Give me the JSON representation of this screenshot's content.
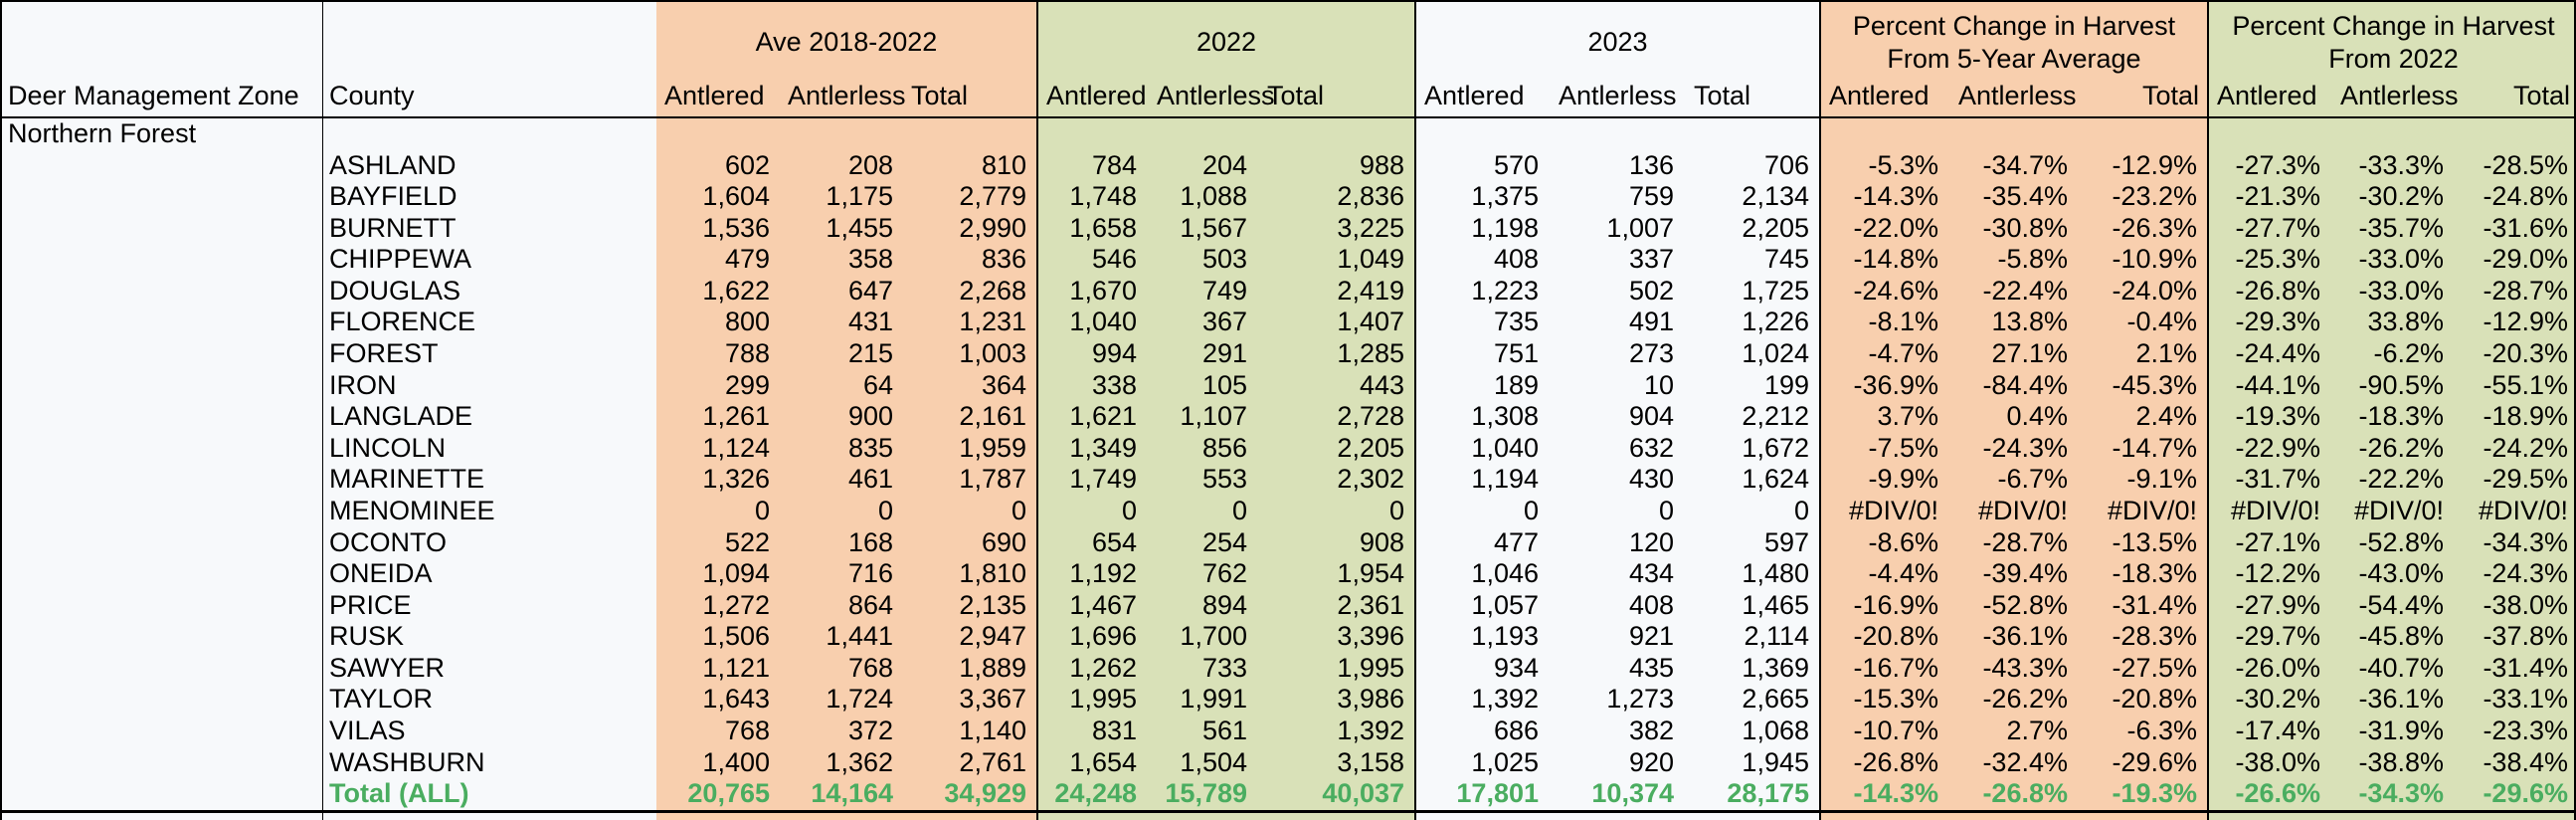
{
  "colors": {
    "peach_fill": "#f8cfae",
    "green_fill": "#d9e1b8",
    "base_fill": "#f7f9fb",
    "total_text_green": "#4aad60",
    "border_black": "#000000"
  },
  "header": {
    "zone_label": "Deer Management Zone",
    "county_label": "County",
    "groups": [
      {
        "title_lines": [
          "Ave 2018-2022"
        ],
        "columns": [
          "Antlered",
          "Antlerless",
          "Total"
        ],
        "fill": "peach"
      },
      {
        "title_lines": [
          "2022"
        ],
        "columns": [
          "Antlered",
          "Antlerless",
          "Total"
        ],
        "fill": "green"
      },
      {
        "title_lines": [
          "2023"
        ],
        "columns": [
          "Antlered",
          "Antlerless",
          "Total"
        ],
        "fill": "plain"
      },
      {
        "title_lines": [
          "Percent Change in Harvest",
          "From 5-Year Average"
        ],
        "columns": [
          "Antlered",
          "Antlerless",
          "Total"
        ],
        "fill": "peach"
      },
      {
        "title_lines": [
          "Percent Change in Harvest",
          "From 2022"
        ],
        "columns": [
          "Antlered",
          "Antlerless",
          "Total"
        ],
        "fill": "green"
      }
    ]
  },
  "zone_row_label": "Northern Forest",
  "rows": [
    {
      "county": "ASHLAND",
      "cells": [
        "602",
        "208",
        "810",
        "784",
        "204",
        "988",
        "570",
        "136",
        "706",
        "-5.3%",
        "-34.7%",
        "-12.9%",
        "-27.3%",
        "-33.3%",
        "-28.5%"
      ]
    },
    {
      "county": "BAYFIELD",
      "cells": [
        "1,604",
        "1,175",
        "2,779",
        "1,748",
        "1,088",
        "2,836",
        "1,375",
        "759",
        "2,134",
        "-14.3%",
        "-35.4%",
        "-23.2%",
        "-21.3%",
        "-30.2%",
        "-24.8%"
      ]
    },
    {
      "county": "BURNETT",
      "cells": [
        "1,536",
        "1,455",
        "2,990",
        "1,658",
        "1,567",
        "3,225",
        "1,198",
        "1,007",
        "2,205",
        "-22.0%",
        "-30.8%",
        "-26.3%",
        "-27.7%",
        "-35.7%",
        "-31.6%"
      ]
    },
    {
      "county": "CHIPPEWA",
      "cells": [
        "479",
        "358",
        "836",
        "546",
        "503",
        "1,049",
        "408",
        "337",
        "745",
        "-14.8%",
        "-5.8%",
        "-10.9%",
        "-25.3%",
        "-33.0%",
        "-29.0%"
      ]
    },
    {
      "county": "DOUGLAS",
      "cells": [
        "1,622",
        "647",
        "2,268",
        "1,670",
        "749",
        "2,419",
        "1,223",
        "502",
        "1,725",
        "-24.6%",
        "-22.4%",
        "-24.0%",
        "-26.8%",
        "-33.0%",
        "-28.7%"
      ]
    },
    {
      "county": "FLORENCE",
      "cells": [
        "800",
        "431",
        "1,231",
        "1,040",
        "367",
        "1,407",
        "735",
        "491",
        "1,226",
        "-8.1%",
        "13.8%",
        "-0.4%",
        "-29.3%",
        "33.8%",
        "-12.9%"
      ]
    },
    {
      "county": "FOREST",
      "cells": [
        "788",
        "215",
        "1,003",
        "994",
        "291",
        "1,285",
        "751",
        "273",
        "1,024",
        "-4.7%",
        "27.1%",
        "2.1%",
        "-24.4%",
        "-6.2%",
        "-20.3%"
      ]
    },
    {
      "county": "IRON",
      "cells": [
        "299",
        "64",
        "364",
        "338",
        "105",
        "443",
        "189",
        "10",
        "199",
        "-36.9%",
        "-84.4%",
        "-45.3%",
        "-44.1%",
        "-90.5%",
        "-55.1%"
      ]
    },
    {
      "county": "LANGLADE",
      "cells": [
        "1,261",
        "900",
        "2,161",
        "1,621",
        "1,107",
        "2,728",
        "1,308",
        "904",
        "2,212",
        "3.7%",
        "0.4%",
        "2.4%",
        "-19.3%",
        "-18.3%",
        "-18.9%"
      ]
    },
    {
      "county": "LINCOLN",
      "cells": [
        "1,124",
        "835",
        "1,959",
        "1,349",
        "856",
        "2,205",
        "1,040",
        "632",
        "1,672",
        "-7.5%",
        "-24.3%",
        "-14.7%",
        "-22.9%",
        "-26.2%",
        "-24.2%"
      ]
    },
    {
      "county": "MARINETTE",
      "cells": [
        "1,326",
        "461",
        "1,787",
        "1,749",
        "553",
        "2,302",
        "1,194",
        "430",
        "1,624",
        "-9.9%",
        "-6.7%",
        "-9.1%",
        "-31.7%",
        "-22.2%",
        "-29.5%"
      ]
    },
    {
      "county": "MENOMINEE",
      "cells": [
        "0",
        "0",
        "0",
        "0",
        "0",
        "0",
        "0",
        "0",
        "0",
        "#DIV/0!",
        "#DIV/0!",
        "#DIV/0!",
        "#DIV/0!",
        "#DIV/0!",
        "#DIV/0!"
      ]
    },
    {
      "county": "OCONTO",
      "cells": [
        "522",
        "168",
        "690",
        "654",
        "254",
        "908",
        "477",
        "120",
        "597",
        "-8.6%",
        "-28.7%",
        "-13.5%",
        "-27.1%",
        "-52.8%",
        "-34.3%"
      ]
    },
    {
      "county": "ONEIDA",
      "cells": [
        "1,094",
        "716",
        "1,810",
        "1,192",
        "762",
        "1,954",
        "1,046",
        "434",
        "1,480",
        "-4.4%",
        "-39.4%",
        "-18.3%",
        "-12.2%",
        "-43.0%",
        "-24.3%"
      ]
    },
    {
      "county": "PRICE",
      "cells": [
        "1,272",
        "864",
        "2,135",
        "1,467",
        "894",
        "2,361",
        "1,057",
        "408",
        "1,465",
        "-16.9%",
        "-52.8%",
        "-31.4%",
        "-27.9%",
        "-54.4%",
        "-38.0%"
      ]
    },
    {
      "county": "RUSK",
      "cells": [
        "1,506",
        "1,441",
        "2,947",
        "1,696",
        "1,700",
        "3,396",
        "1,193",
        "921",
        "2,114",
        "-20.8%",
        "-36.1%",
        "-28.3%",
        "-29.7%",
        "-45.8%",
        "-37.8%"
      ]
    },
    {
      "county": "SAWYER",
      "cells": [
        "1,121",
        "768",
        "1,889",
        "1,262",
        "733",
        "1,995",
        "934",
        "435",
        "1,369",
        "-16.7%",
        "-43.3%",
        "-27.5%",
        "-26.0%",
        "-40.7%",
        "-31.4%"
      ]
    },
    {
      "county": "TAYLOR",
      "cells": [
        "1,643",
        "1,724",
        "3,367",
        "1,995",
        "1,991",
        "3,986",
        "1,392",
        "1,273",
        "2,665",
        "-15.3%",
        "-26.2%",
        "-20.8%",
        "-30.2%",
        "-36.1%",
        "-33.1%"
      ]
    },
    {
      "county": "VILAS",
      "cells": [
        "768",
        "372",
        "1,140",
        "831",
        "561",
        "1,392",
        "686",
        "382",
        "1,068",
        "-10.7%",
        "2.7%",
        "-6.3%",
        "-17.4%",
        "-31.9%",
        "-23.3%"
      ]
    },
    {
      "county": "WASHBURN",
      "cells": [
        "1,400",
        "1,362",
        "2,761",
        "1,654",
        "1,504",
        "3,158",
        "1,025",
        "920",
        "1,945",
        "-26.8%",
        "-32.4%",
        "-29.6%",
        "-38.0%",
        "-38.8%",
        "-38.4%"
      ]
    }
  ],
  "total_row": {
    "label": "Total (ALL)",
    "cells": [
      "20,765",
      "14,164",
      "34,929",
      "24,248",
      "15,789",
      "40,037",
      "17,801",
      "10,374",
      "28,175",
      "-14.3%",
      "-26.8%",
      "-19.3%",
      "-26.6%",
      "-34.3%",
      "-29.6%"
    ]
  }
}
